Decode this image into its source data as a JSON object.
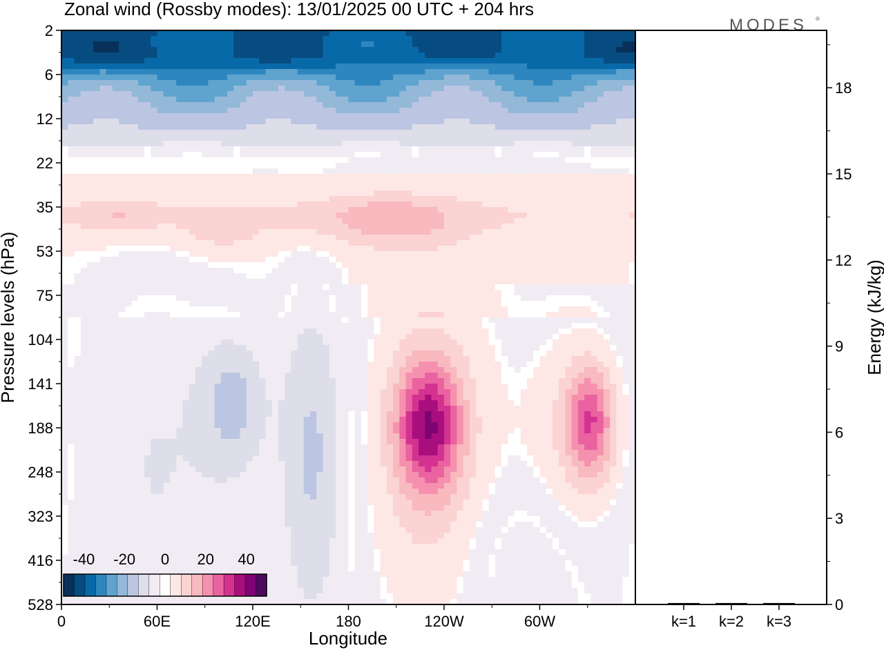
{
  "chart_data": [
    {
      "type": "heatmap",
      "title": "Zonal wind (Rossby modes):  13/01/2025  00 UTC  + 204 hrs",
      "xlabel": "Longitude",
      "ylabel": "Pressure levels (hPa)",
      "x_ticks": [
        "0",
        "60E",
        "120E",
        "180",
        "120W",
        "60W"
      ],
      "y_ticks": [
        "2",
        "6",
        "12",
        "22",
        "35",
        "53",
        "75",
        "104",
        "141",
        "188",
        "248",
        "323",
        "416",
        "528"
      ],
      "y_scale": "log",
      "colorbar": {
        "ticks": [
          "-40",
          "-20",
          "0",
          "20",
          "40"
        ],
        "range": [
          -50,
          50
        ],
        "colors": [
          "#08305a",
          "#074c80",
          "#0869a8",
          "#2e86bf",
          "#5fa3cf",
          "#93b8d8",
          "#bcc6e2",
          "#dddee9",
          "#f1ecf3",
          "#ffffff",
          "#fde8e6",
          "#fbd3d3",
          "#f8b9bf",
          "#f591ae",
          "#ea62a0",
          "#d33291",
          "#a90e7d",
          "#7f0372",
          "#4d0a5e"
        ]
      },
      "fields": [
        {
          "cx_lon": 180,
          "p": 3.5,
          "value": -44,
          "sx": 240,
          "sy": 0.35
        },
        {
          "cx_lon": 80,
          "p": 3.8,
          "value": -48,
          "sx": 95,
          "sy": 0.28
        },
        {
          "cx_lon": 330,
          "p": 3.6,
          "value": -45,
          "sx": 70,
          "sy": 0.24
        },
        {
          "cx_lon": 205,
          "p": 40,
          "value": 9,
          "sx": 28,
          "sy": 0.18
        },
        {
          "cx_lon": 150,
          "p": 38,
          "value": 6,
          "sx": 200,
          "sy": 0.16
        },
        {
          "cx_lon": 100,
          "p": 45,
          "value": 6,
          "sx": 15,
          "sy": 0.12
        },
        {
          "cx_lon": 35,
          "p": 38,
          "value": 6,
          "sx": 18,
          "sy": 0.1
        },
        {
          "cx_lon": 230,
          "p": 185,
          "value": 30,
          "sx": 14,
          "sy": 0.28
        },
        {
          "cx_lon": 232,
          "p": 200,
          "value": 12,
          "sx": 28,
          "sy": 0.75
        },
        {
          "cx_lon": 332,
          "p": 180,
          "value": 22,
          "sx": 10,
          "sy": 0.25
        },
        {
          "cx_lon": 325,
          "p": 190,
          "value": 10,
          "sx": 22,
          "sy": 0.45
        },
        {
          "cx_lon": 108,
          "p": 160,
          "value": -12,
          "sx": 14,
          "sy": 0.3
        },
        {
          "cx_lon": 158,
          "p": 220,
          "value": -13,
          "sx": 15,
          "sy": 0.75
        },
        {
          "cx_lon": 60,
          "p": 240,
          "value": -7,
          "sx": 40,
          "sy": 0.9
        },
        {
          "cx_lon": 290,
          "p": 450,
          "value": -6,
          "sx": 25,
          "sy": 0.35
        }
      ]
    },
    {
      "type": "bar",
      "categories": [
        "k=1",
        "k=2",
        "k=3"
      ],
      "values": [
        0.05,
        0.05,
        0.05
      ],
      "ylabel": "Energy (kJ/kg)",
      "ylim": [
        0,
        20
      ],
      "y_ticks": [
        "0",
        "3",
        "6",
        "9",
        "12",
        "15",
        "18"
      ]
    }
  ],
  "logo": "MODES"
}
